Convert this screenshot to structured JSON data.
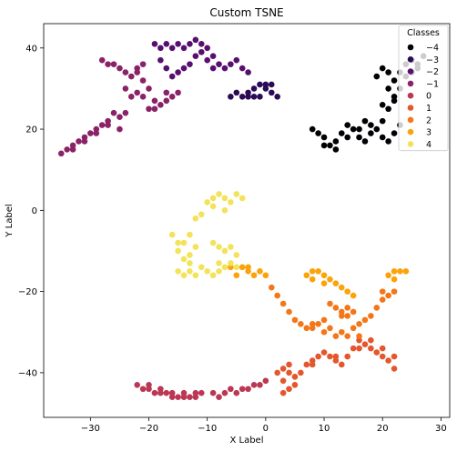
{
  "chart_data": {
    "type": "scatter",
    "title": "Custom TSNE",
    "xlabel": "X Label",
    "ylabel": "Y Label",
    "xlim": [
      -38,
      31.5
    ],
    "ylim": [
      -51,
      46
    ],
    "xticks": [
      -30,
      -20,
      -10,
      0,
      10,
      20,
      30
    ],
    "yticks": [
      -40,
      -20,
      0,
      20,
      40
    ],
    "grid": false,
    "legend": {
      "title": "Classes",
      "placement": "top-right"
    },
    "series": [
      {
        "name": "−4",
        "color": "#000004",
        "points": [
          [
            8,
            20
          ],
          [
            9,
            19
          ],
          [
            10,
            18
          ],
          [
            11,
            16
          ],
          [
            12,
            17
          ],
          [
            13,
            19
          ],
          [
            14,
            21
          ],
          [
            15,
            20
          ],
          [
            16,
            18
          ],
          [
            17,
            17
          ],
          [
            18,
            19
          ],
          [
            19,
            20
          ],
          [
            20,
            18
          ],
          [
            21,
            17
          ],
          [
            22,
            19
          ],
          [
            23,
            21
          ],
          [
            20,
            22
          ],
          [
            18,
            21
          ],
          [
            17,
            22
          ],
          [
            16,
            20
          ],
          [
            14,
            18
          ],
          [
            12,
            15
          ],
          [
            10,
            16
          ],
          [
            21,
            30
          ],
          [
            22,
            32
          ],
          [
            23,
            34
          ],
          [
            24,
            36
          ],
          [
            25,
            37
          ],
          [
            26,
            36
          ],
          [
            27,
            38
          ],
          [
            23,
            30
          ],
          [
            22,
            28
          ],
          [
            21,
            34
          ],
          [
            20,
            35
          ],
          [
            19,
            33
          ],
          [
            20,
            26
          ],
          [
            21,
            25
          ],
          [
            22,
            27
          ],
          [
            24,
            33
          ],
          [
            25,
            34
          ],
          [
            26,
            35
          ]
        ]
      },
      {
        "name": "−3",
        "color": "#2a0b55",
        "points": [
          [
            -6,
            28
          ],
          [
            -5,
            29
          ],
          [
            -4,
            28
          ],
          [
            -3,
            29
          ],
          [
            -2,
            30
          ],
          [
            -1,
            31
          ],
          [
            0,
            30
          ],
          [
            1,
            29
          ],
          [
            2,
            28
          ],
          [
            -1,
            28
          ],
          [
            0,
            31
          ],
          [
            1,
            31
          ],
          [
            -2,
            28
          ],
          [
            -3,
            28
          ]
        ]
      },
      {
        "name": "−2",
        "color": "#57106e",
        "points": [
          [
            -18,
            40
          ],
          [
            -17,
            41
          ],
          [
            -16,
            40
          ],
          [
            -15,
            41
          ],
          [
            -14,
            40
          ],
          [
            -13,
            41
          ],
          [
            -12,
            42
          ],
          [
            -11,
            41
          ],
          [
            -10,
            40
          ],
          [
            -9,
            38
          ],
          [
            -8,
            36
          ],
          [
            -7,
            35
          ],
          [
            -6,
            36
          ],
          [
            -5,
            37
          ],
          [
            -4,
            35
          ],
          [
            -3,
            34
          ],
          [
            -12,
            38
          ],
          [
            -13,
            36
          ],
          [
            -14,
            35
          ],
          [
            -15,
            34
          ],
          [
            -16,
            33
          ],
          [
            -17,
            35
          ],
          [
            -18,
            37
          ],
          [
            -19,
            41
          ],
          [
            -11,
            39
          ],
          [
            -10,
            37
          ],
          [
            -9,
            35
          ]
        ]
      },
      {
        "name": "−1",
        "color": "#8a2267",
        "points": [
          [
            -28,
            37
          ],
          [
            -27,
            36
          ],
          [
            -26,
            36
          ],
          [
            -25,
            35
          ],
          [
            -24,
            34
          ],
          [
            -23,
            33
          ],
          [
            -22,
            34
          ],
          [
            -21,
            32
          ],
          [
            -20,
            30
          ],
          [
            -21,
            28
          ],
          [
            -22,
            29
          ],
          [
            -23,
            28
          ],
          [
            -24,
            30
          ],
          [
            -20,
            25
          ],
          [
            -19,
            25
          ],
          [
            -18,
            26
          ],
          [
            -17,
            27
          ],
          [
            -16,
            28
          ],
          [
            -15,
            29
          ],
          [
            -17,
            29
          ],
          [
            -19,
            27
          ],
          [
            -26,
            24
          ],
          [
            -27,
            22
          ],
          [
            -28,
            21
          ],
          [
            -29,
            20
          ],
          [
            -30,
            19
          ],
          [
            -31,
            18
          ],
          [
            -32,
            17
          ],
          [
            -33,
            16
          ],
          [
            -34,
            15
          ],
          [
            -35,
            14
          ],
          [
            -33,
            15
          ],
          [
            -31,
            17
          ],
          [
            -29,
            19
          ],
          [
            -27,
            21
          ],
          [
            -25,
            23
          ],
          [
            -24,
            24
          ],
          [
            -25,
            20
          ],
          [
            -21,
            36
          ],
          [
            -22,
            35
          ]
        ]
      },
      {
        "name": "0",
        "color": "#bb3754",
        "points": [
          [
            -22,
            -43
          ],
          [
            -21,
            -44
          ],
          [
            -20,
            -44
          ],
          [
            -19,
            -45
          ],
          [
            -18,
            -44
          ],
          [
            -17,
            -45
          ],
          [
            -16,
            -45
          ],
          [
            -15,
            -46
          ],
          [
            -14,
            -45
          ],
          [
            -13,
            -46
          ],
          [
            -12,
            -45
          ],
          [
            -11,
            -45
          ],
          [
            -9,
            -45
          ],
          [
            -8,
            -46
          ],
          [
            -7,
            -45
          ],
          [
            -6,
            -44
          ],
          [
            -5,
            -45
          ],
          [
            -4,
            -44
          ],
          [
            -3,
            -44
          ],
          [
            -2,
            -43
          ],
          [
            -1,
            -43
          ],
          [
            0,
            -42
          ],
          [
            -20,
            -43
          ],
          [
            -18,
            -45
          ],
          [
            -16,
            -46
          ],
          [
            -14,
            -46
          ],
          [
            -12,
            -46
          ]
        ]
      },
      {
        "name": "1",
        "color": "#e4572d",
        "points": [
          [
            2,
            -40
          ],
          [
            3,
            -39
          ],
          [
            4,
            -38
          ],
          [
            4,
            -40
          ],
          [
            3,
            -42
          ],
          [
            4,
            -44
          ],
          [
            5,
            -43
          ],
          [
            6,
            -40
          ],
          [
            7,
            -38
          ],
          [
            8,
            -37
          ],
          [
            9,
            -36
          ],
          [
            10,
            -35
          ],
          [
            11,
            -36
          ],
          [
            12,
            -37
          ],
          [
            13,
            -38
          ],
          [
            14,
            -36
          ],
          [
            15,
            -34
          ],
          [
            16,
            -32
          ],
          [
            17,
            -33
          ],
          [
            18,
            -34
          ],
          [
            19,
            -35
          ],
          [
            20,
            -36
          ],
          [
            21,
            -37
          ],
          [
            22,
            -39
          ],
          [
            22,
            -36
          ],
          [
            3,
            -45
          ],
          [
            5,
            -41
          ],
          [
            8,
            -38
          ],
          [
            12,
            -36
          ],
          [
            16,
            -34
          ],
          [
            18,
            -32
          ],
          [
            20,
            -34
          ]
        ]
      },
      {
        "name": "2",
        "color": "#f37719",
        "points": [
          [
            1,
            -19
          ],
          [
            2,
            -21
          ],
          [
            3,
            -23
          ],
          [
            4,
            -25
          ],
          [
            5,
            -27
          ],
          [
            6,
            -28
          ],
          [
            7,
            -29
          ],
          [
            8,
            -28
          ],
          [
            9,
            -28
          ],
          [
            10,
            -27
          ],
          [
            11,
            -29
          ],
          [
            12,
            -31
          ],
          [
            13,
            -30
          ],
          [
            14,
            -31
          ],
          [
            15,
            -29
          ],
          [
            16,
            -28
          ],
          [
            17,
            -27
          ],
          [
            18,
            -26
          ],
          [
            19,
            -24
          ],
          [
            20,
            -22
          ],
          [
            21,
            -21
          ],
          [
            22,
            -20
          ],
          [
            20,
            -20
          ],
          [
            14,
            -26
          ],
          [
            13,
            -25
          ],
          [
            11,
            -23
          ],
          [
            12,
            -24
          ],
          [
            13,
            -26
          ],
          [
            14,
            -24
          ],
          [
            15,
            -25
          ],
          [
            16,
            -31
          ],
          [
            8,
            -29
          ],
          [
            10,
            -30
          ]
        ]
      },
      {
        "name": "3",
        "color": "#fba30a",
        "points": [
          [
            7,
            -16
          ],
          [
            8,
            -15
          ],
          [
            9,
            -15
          ],
          [
            10,
            -16
          ],
          [
            11,
            -17
          ],
          [
            12,
            -18
          ],
          [
            13,
            -19
          ],
          [
            14,
            -20
          ],
          [
            15,
            -21
          ],
          [
            8,
            -17
          ],
          [
            10,
            -18
          ],
          [
            21,
            -16
          ],
          [
            22,
            -15
          ],
          [
            23,
            -15
          ],
          [
            24,
            -15
          ],
          [
            22,
            -17
          ],
          [
            -4,
            -14
          ],
          [
            -3,
            -15
          ],
          [
            -2,
            -16
          ],
          [
            -1,
            -15
          ],
          [
            0,
            -16
          ],
          [
            -5,
            -16
          ],
          [
            -6,
            -14
          ],
          [
            -3,
            -14
          ]
        ]
      },
      {
        "name": "4",
        "color": "#f3e35a",
        "points": [
          [
            -10,
            2
          ],
          [
            -9,
            3
          ],
          [
            -8,
            4
          ],
          [
            -7,
            3
          ],
          [
            -6,
            2
          ],
          [
            -5,
            4
          ],
          [
            -4,
            3
          ],
          [
            -9,
            1
          ],
          [
            -7,
            0
          ],
          [
            -11,
            -1
          ],
          [
            -12,
            -2
          ],
          [
            -13,
            -6
          ],
          [
            -14,
            -8
          ],
          [
            -15,
            -10
          ],
          [
            -14,
            -12
          ],
          [
            -13,
            -11
          ],
          [
            -12,
            -9
          ],
          [
            -15,
            -15
          ],
          [
            -14,
            -16
          ],
          [
            -13,
            -15
          ],
          [
            -12,
            -16
          ],
          [
            -11,
            -14
          ],
          [
            -10,
            -15
          ],
          [
            -9,
            -16
          ],
          [
            -8,
            -15
          ],
          [
            -7,
            -14
          ],
          [
            -6,
            -13
          ],
          [
            -5,
            -14
          ],
          [
            -9,
            -8
          ],
          [
            -8,
            -9
          ],
          [
            -7,
            -10
          ],
          [
            -6,
            -9
          ],
          [
            -5,
            -11
          ],
          [
            -16,
            -6
          ],
          [
            -15,
            -8
          ],
          [
            -13,
            -13
          ],
          [
            -8,
            -13
          ]
        ]
      }
    ]
  }
}
